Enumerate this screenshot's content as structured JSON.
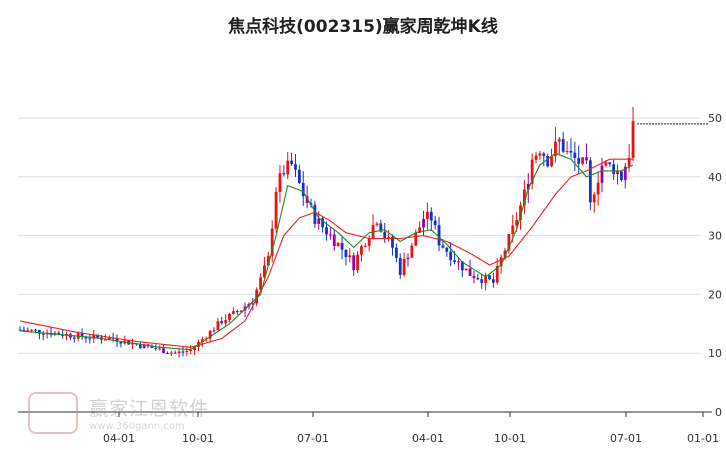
{
  "chart_data": {
    "type": "candlestick",
    "title": "焦点科技(002315)赢家周乾坤K线",
    "x_ticks": [
      "04-01",
      "10-01",
      "07-01",
      "04-01",
      "10-01",
      "07-01",
      "01-01"
    ],
    "y_ticks": [
      "0",
      "10",
      "20",
      "30",
      "40",
      "50"
    ],
    "ylim": [
      0,
      55
    ],
    "grid": "horizontal",
    "current_level": 49,
    "colors": {
      "up": "#ee1111",
      "down": "#1133cc",
      "mixed": "#9900aa",
      "ma_short": "#228b22",
      "ma_long": "#ee2222",
      "grid": "#dddddd"
    },
    "anchors": [
      [
        0,
        14.0
      ],
      [
        8,
        13.5
      ],
      [
        16,
        12.8
      ],
      [
        24,
        12.5
      ],
      [
        30,
        11.5
      ],
      [
        36,
        10.6
      ],
      [
        40,
        10.0
      ],
      [
        44,
        10.5
      ],
      [
        48,
        13.0
      ],
      [
        52,
        15.5
      ],
      [
        56,
        17.0
      ],
      [
        60,
        19.0
      ],
      [
        64,
        26.0
      ],
      [
        66,
        38.0
      ],
      [
        68,
        41.0
      ],
      [
        70,
        42.0
      ],
      [
        73,
        37.0
      ],
      [
        76,
        33.0
      ],
      [
        80,
        30.0
      ],
      [
        84,
        27.0
      ],
      [
        86,
        25.0
      ],
      [
        88,
        28.0
      ],
      [
        92,
        33.0
      ],
      [
        94,
        30.0
      ],
      [
        96,
        28.0
      ],
      [
        98,
        24.0
      ],
      [
        100,
        27.0
      ],
      [
        104,
        33.0
      ],
      [
        106,
        33.0
      ],
      [
        108,
        29.0
      ],
      [
        112,
        26.0
      ],
      [
        116,
        23.5
      ],
      [
        120,
        22.5
      ],
      [
        122,
        22.0
      ],
      [
        124,
        26.0
      ],
      [
        127,
        31.0
      ],
      [
        130,
        37.0
      ],
      [
        132,
        43.0
      ],
      [
        134,
        45.0
      ],
      [
        136,
        43.0
      ],
      [
        139,
        46.0
      ],
      [
        141,
        44.0
      ],
      [
        143,
        43.0
      ],
      [
        146,
        41.5
      ],
      [
        147,
        35.0
      ],
      [
        148,
        38.0
      ],
      [
        150,
        42.0
      ],
      [
        153,
        41.5
      ],
      [
        155,
        40.0
      ],
      [
        157,
        44.0
      ],
      [
        158,
        49.0
      ]
    ],
    "ma_short": [
      [
        0,
        13.8
      ],
      [
        20,
        12.6
      ],
      [
        36,
        11.0
      ],
      [
        44,
        10.6
      ],
      [
        54,
        15.0
      ],
      [
        62,
        20.0
      ],
      [
        66,
        30.0
      ],
      [
        69,
        38.5
      ],
      [
        73,
        37.5
      ],
      [
        77,
        33.0
      ],
      [
        82,
        30.5
      ],
      [
        86,
        28.0
      ],
      [
        90,
        30.5
      ],
      [
        94,
        31.0
      ],
      [
        98,
        29.0
      ],
      [
        102,
        30.5
      ],
      [
        106,
        31.0
      ],
      [
        110,
        28.5
      ],
      [
        114,
        25.5
      ],
      [
        120,
        23.0
      ],
      [
        124,
        25.0
      ],
      [
        128,
        31.0
      ],
      [
        131,
        38.0
      ],
      [
        134,
        42.0
      ],
      [
        138,
        44.0
      ],
      [
        142,
        43.0
      ],
      [
        146,
        40.0
      ],
      [
        150,
        41.0
      ],
      [
        155,
        41.0
      ],
      [
        158,
        42.0
      ]
    ],
    "ma_long": [
      [
        0,
        15.5
      ],
      [
        15,
        13.5
      ],
      [
        30,
        12.0
      ],
      [
        44,
        11.0
      ],
      [
        52,
        12.5
      ],
      [
        58,
        15.5
      ],
      [
        64,
        23.0
      ],
      [
        68,
        30.0
      ],
      [
        72,
        33.0
      ],
      [
        76,
        34.0
      ],
      [
        80,
        32.5
      ],
      [
        84,
        30.5
      ],
      [
        90,
        29.5
      ],
      [
        98,
        29.5
      ],
      [
        104,
        30.0
      ],
      [
        110,
        29.0
      ],
      [
        116,
        27.0
      ],
      [
        121,
        25.0
      ],
      [
        126,
        26.5
      ],
      [
        132,
        31.5
      ],
      [
        138,
        37.0
      ],
      [
        142,
        40.0
      ],
      [
        146,
        41.0
      ],
      [
        152,
        43.0
      ],
      [
        158,
        43.0
      ]
    ]
  },
  "watermark": {
    "name": "赢家江恩软件",
    "url": "www.360gann.com"
  }
}
